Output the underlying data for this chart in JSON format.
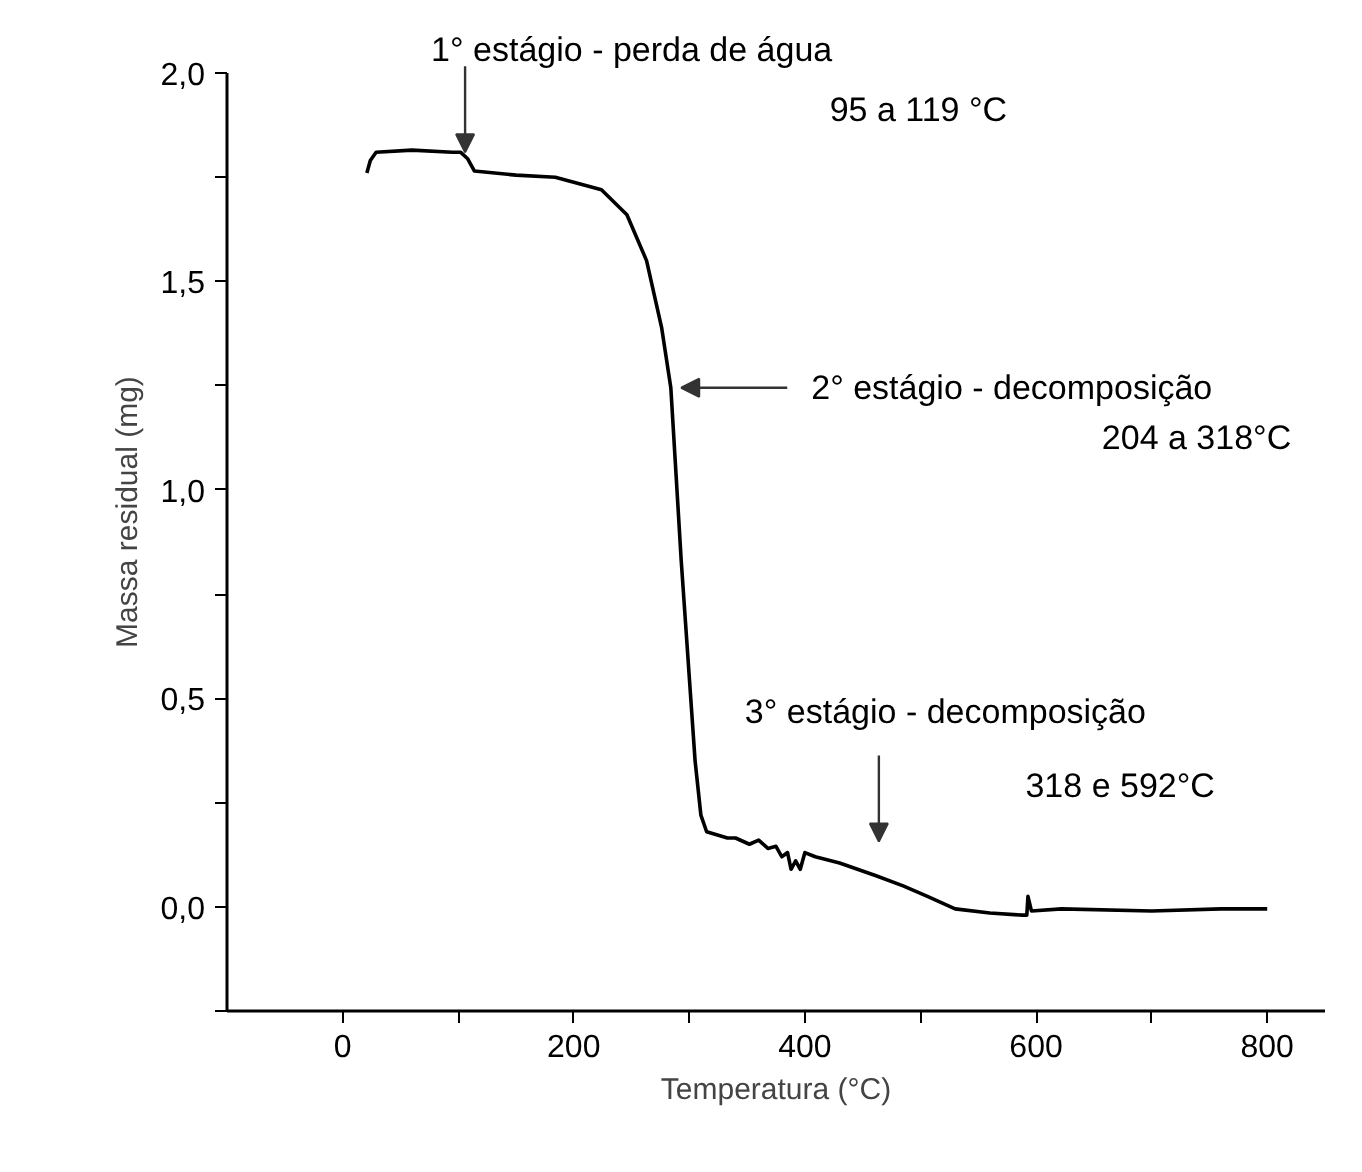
{
  "chart_data": {
    "type": "line",
    "xlabel": "Temperatura (°C)",
    "ylabel": "Massa residual (mg)",
    "xlim": [
      -100,
      850
    ],
    "ylim": [
      -0.25,
      2.0
    ],
    "xticks": [
      0,
      {
        "value": 100,
        "label": null
      },
      200,
      {
        "value": 300,
        "label": null
      },
      400,
      {
        "value": 500,
        "label": null
      },
      600,
      {
        "value": 700,
        "label": null
      },
      800
    ],
    "yticks": [
      {
        "value": -0.25,
        "label": null
      },
      {
        "value": 0,
        "label": "0,0"
      },
      {
        "value": 0.25,
        "label": null
      },
      {
        "value": 0.5,
        "label": "0,5"
      },
      {
        "value": 0.75,
        "label": null
      },
      {
        "value": 1.0,
        "label": "1,0"
      },
      {
        "value": 1.25,
        "label": null
      },
      {
        "value": 1.5,
        "label": "1,5"
      },
      {
        "value": 1.75,
        "label": null
      },
      {
        "value": 2.0,
        "label": "2,0"
      }
    ],
    "line_style": "solid",
    "series": [
      {
        "color": "#000000",
        "x": [
          21,
          24,
          29,
          60,
          95,
          102,
          108,
          114,
          150,
          184,
          224,
          246,
          263,
          276,
          284,
          293,
          305,
          310,
          315,
          333,
          340,
          352,
          360,
          368,
          375,
          380,
          385,
          388,
          392,
          396,
          400,
          409,
          430,
          461,
          485,
          506,
          530,
          560,
          588,
          592,
          593,
          596,
          622,
          700,
          760,
          800
        ],
        "values": [
          1.76,
          1.79,
          1.81,
          1.815,
          1.81,
          1.81,
          1.795,
          1.765,
          1.755,
          1.75,
          1.72,
          1.66,
          1.55,
          1.39,
          1.245,
          0.83,
          0.35,
          0.22,
          0.18,
          0.165,
          0.165,
          0.15,
          0.16,
          0.14,
          0.145,
          0.12,
          0.13,
          0.09,
          0.11,
          0.09,
          0.13,
          0.12,
          0.105,
          0.075,
          0.05,
          0.025,
          -0.005,
          -0.015,
          -0.02,
          -0.02,
          0.025,
          -0.01,
          -0.005,
          -0.01,
          -0.005,
          -0.005
        ]
      }
    ],
    "annotations": [
      {
        "text": "1°  estágio - perda de água\n95 a 119 °C",
        "x": 106,
        "y": 1.81
      },
      {
        "text": "2° estágio - decomposição\n204 a 318°C",
        "x": 293,
        "y": 1.245
      },
      {
        "text": "3° estágio - decomposição\n318 e 592°C",
        "x": 464,
        "y": 0.075
      }
    ]
  }
}
